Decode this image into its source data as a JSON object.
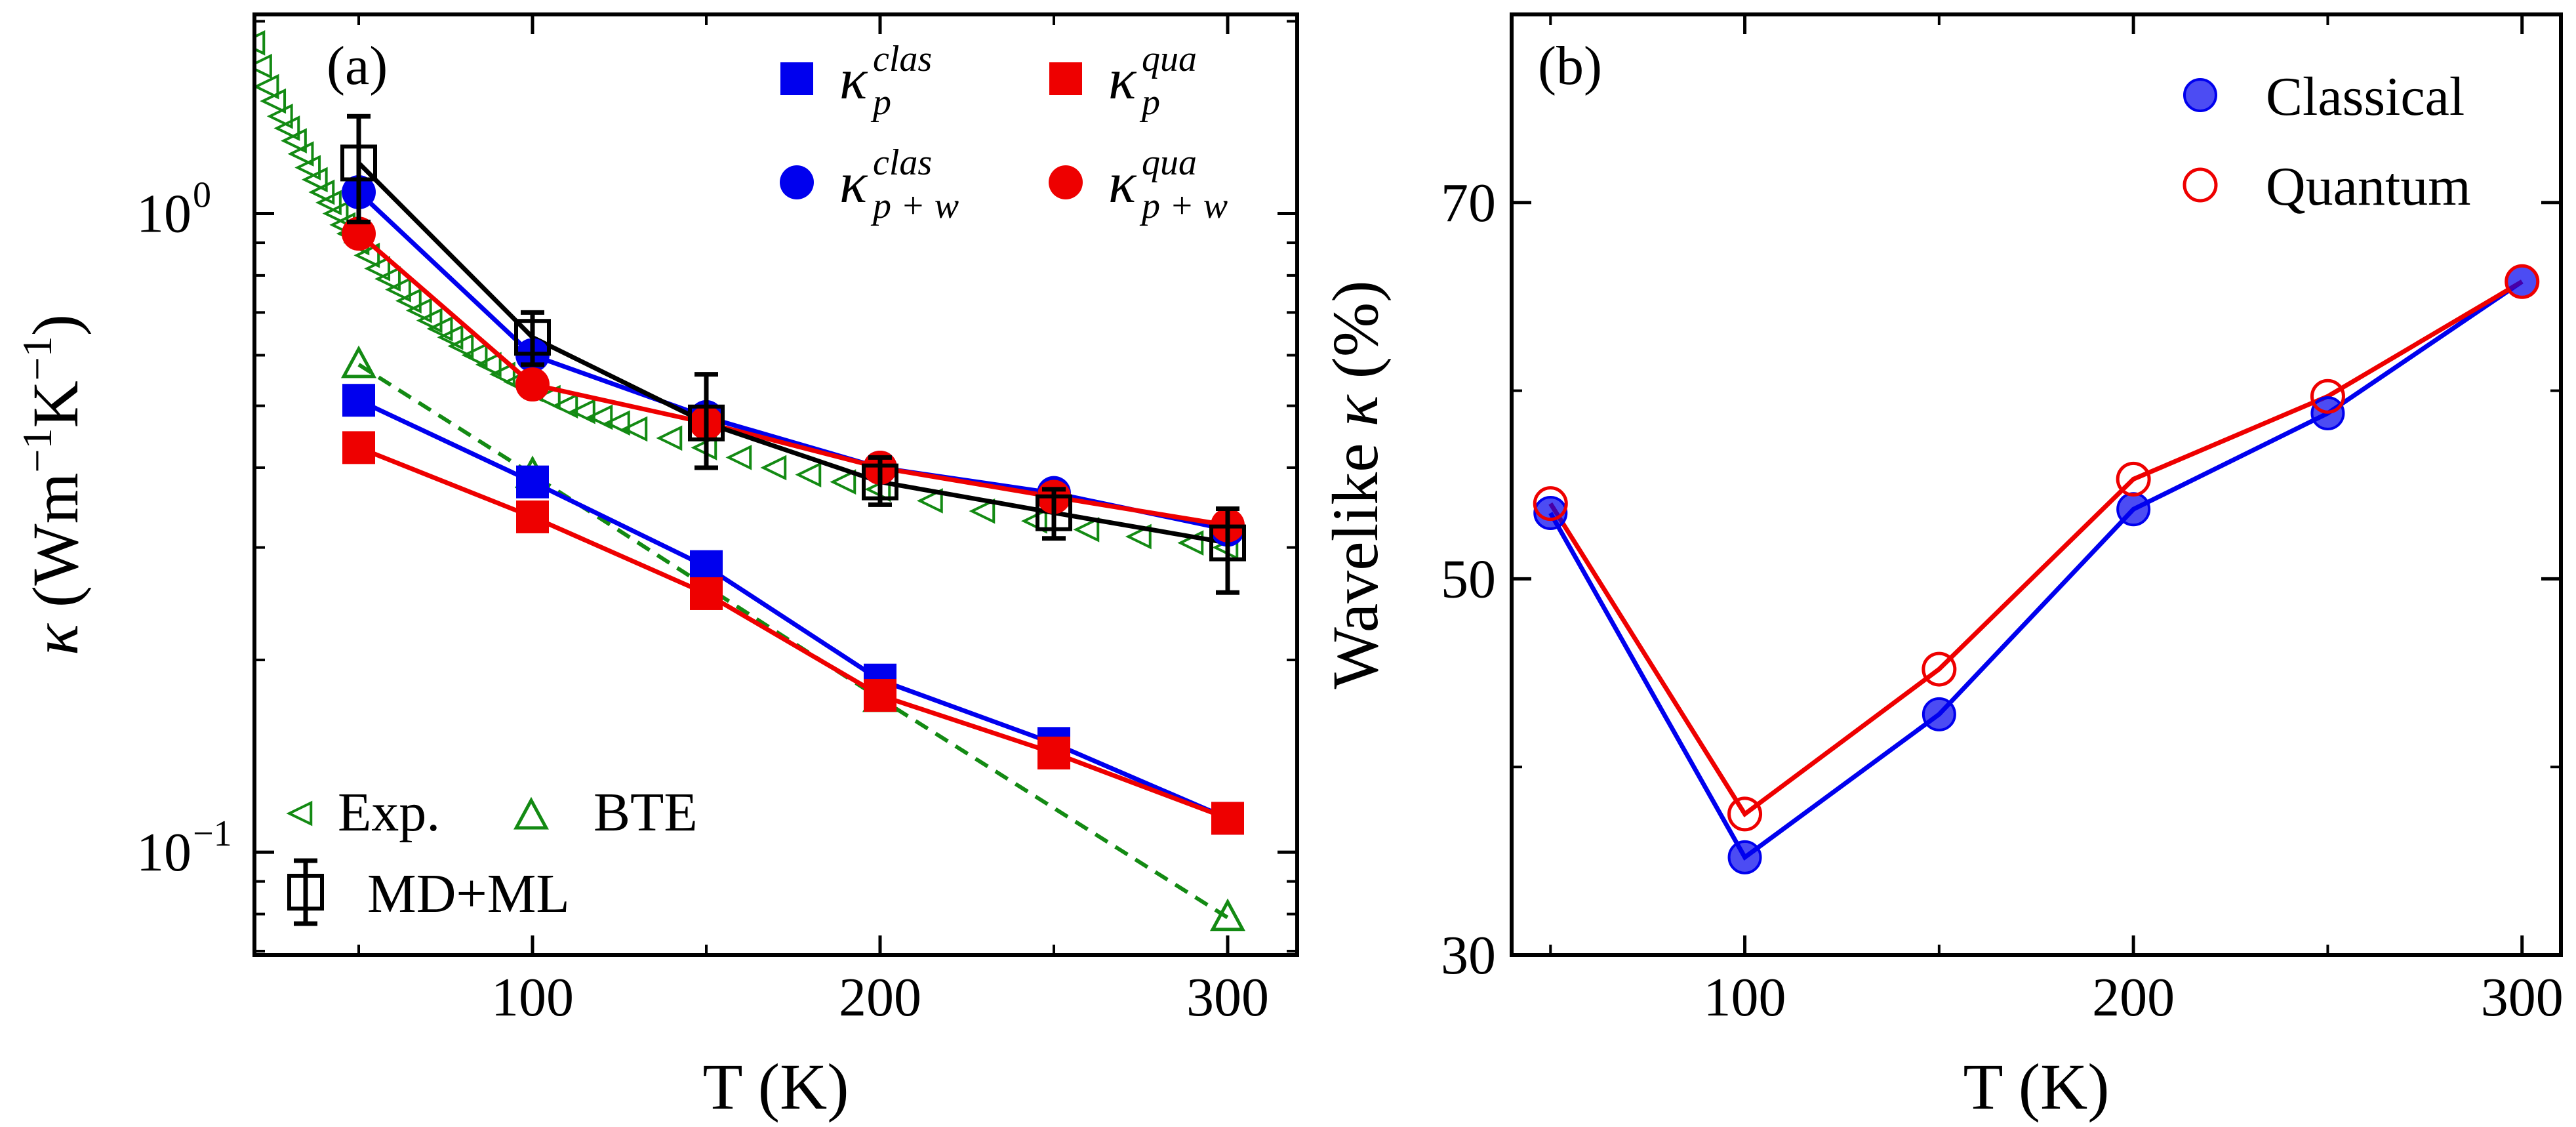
{
  "chart_data": [
    {
      "type": "line",
      "panel_label": "(a)",
      "xlabel": "T (K)",
      "ylabel_parts": [
        "κ",
        " (Wm",
        "−1",
        "K",
        "−1",
        ")"
      ],
      "y_scale": "log",
      "xlim": [
        20,
        320
      ],
      "ylim": [
        0.069,
        2.05
      ],
      "x_ticks": [
        100,
        200,
        300
      ],
      "x_tick_labels": [
        "100",
        "200",
        "300"
      ],
      "y_tick_labels": [
        {
          "value": 1.0,
          "base": "10",
          "exp": "0"
        },
        {
          "value": 0.1,
          "base": "10",
          "exp": "−1"
        }
      ],
      "colors": {
        "blue": "#0000ee",
        "red": "#ee0000",
        "green": "#138a13",
        "black": "#000000"
      },
      "series": [
        {
          "key": "kp_clas",
          "marker": "square",
          "color": "blue",
          "line": "solid",
          "x": [
            50,
            100,
            150,
            200,
            250,
            300
          ],
          "y": [
            0.51,
            0.38,
            0.28,
            0.186,
            0.148,
            0.113
          ]
        },
        {
          "key": "kp_qua",
          "marker": "square",
          "color": "red",
          "line": "solid",
          "x": [
            50,
            100,
            150,
            200,
            250,
            300
          ],
          "y": [
            0.43,
            0.335,
            0.254,
            0.176,
            0.143,
            0.113
          ]
        },
        {
          "key": "kpw_clas",
          "marker": "circle",
          "color": "blue",
          "line": "solid",
          "x": [
            50,
            100,
            150,
            200,
            250,
            300
          ],
          "y": [
            1.08,
            0.6,
            0.48,
            0.4,
            0.365,
            0.32
          ]
        },
        {
          "key": "kpw_qua",
          "marker": "circle",
          "color": "red",
          "line": "solid",
          "x": [
            50,
            100,
            150,
            200,
            250,
            300
          ],
          "y": [
            0.93,
            0.54,
            0.47,
            0.4,
            0.36,
            0.325
          ]
        },
        {
          "key": "md_ml",
          "marker": "open-square",
          "color": "black",
          "line": "solid",
          "x": [
            50,
            100,
            150,
            200,
            250,
            300
          ],
          "y": [
            1.2,
            0.64,
            0.47,
            0.38,
            0.34,
            0.305
          ],
          "err_low": [
            0.97,
            0.58,
            0.4,
            0.35,
            0.31,
            0.255
          ],
          "err_high": [
            1.42,
            0.7,
            0.56,
            0.415,
            0.37,
            0.345
          ]
        },
        {
          "key": "bte",
          "marker": "open-triangle-up",
          "color": "green",
          "line": "dashed",
          "x": [
            50,
            100,
            200,
            300
          ],
          "y": [
            0.58,
            0.39,
            0.174,
            0.079
          ]
        },
        {
          "key": "exp",
          "marker": "open-triangle-left",
          "color": "green",
          "line": "none",
          "x": [
            20,
            22,
            24,
            26,
            28,
            30,
            32,
            34,
            36,
            38,
            40,
            42,
            44,
            46,
            48,
            50,
            53,
            56,
            59,
            62,
            65,
            68,
            71,
            74,
            77,
            80,
            84,
            88,
            92,
            96,
            100,
            105,
            110,
            115,
            120,
            125,
            130,
            140,
            150,
            160,
            170,
            180,
            190,
            200,
            215,
            230,
            245,
            260,
            275,
            290,
            300
          ],
          "y": [
            1.85,
            1.7,
            1.58,
            1.5,
            1.42,
            1.36,
            1.3,
            1.24,
            1.18,
            1.13,
            1.08,
            1.04,
            1.0,
            0.96,
            0.93,
            0.9,
            0.86,
            0.82,
            0.79,
            0.76,
            0.73,
            0.705,
            0.68,
            0.66,
            0.64,
            0.62,
            0.6,
            0.58,
            0.56,
            0.545,
            0.53,
            0.515,
            0.5,
            0.49,
            0.48,
            0.47,
            0.46,
            0.445,
            0.43,
            0.415,
            0.4,
            0.39,
            0.38,
            0.37,
            0.355,
            0.342,
            0.33,
            0.32,
            0.312,
            0.305,
            0.3
          ]
        }
      ],
      "legend_top": [
        {
          "series": "kp_clas",
          "main": "κ",
          "sup": "clas",
          "sub": "p"
        },
        {
          "series": "kp_qua",
          "main": "κ",
          "sup": "qua",
          "sub": "p"
        },
        {
          "series": "kpw_clas",
          "main": "κ",
          "sup": "clas",
          "sub": "p + w"
        },
        {
          "series": "kpw_qua",
          "main": "κ",
          "sup": "qua",
          "sub": "p + w"
        }
      ],
      "legend_bottom": [
        {
          "series": "exp",
          "label": "Exp."
        },
        {
          "series": "bte",
          "label": "BTE"
        },
        {
          "series": "md_ml",
          "label": "MD+ML"
        }
      ]
    },
    {
      "type": "line",
      "panel_label": "(b)",
      "xlabel": "T (K)",
      "ylabel": "Wavelike κ (%)",
      "ylabel_parts": [
        "Wavelike ",
        "κ",
        " (%)"
      ],
      "xlim": [
        40,
        310
      ],
      "ylim": [
        30,
        80
      ],
      "x_ticks": [
        100,
        200,
        300
      ],
      "x_tick_labels": [
        "100",
        "200",
        "300"
      ],
      "y_ticks": [
        30,
        50,
        70
      ],
      "y_tick_labels": [
        "30",
        "50",
        "70"
      ],
      "series": [
        {
          "name": "Classical",
          "marker": "filled-circle",
          "color": "#0000ee",
          "x": [
            50,
            100,
            150,
            200,
            250,
            300
          ],
          "y": [
            53.5,
            35.2,
            42.8,
            53.7,
            58.8,
            65.8
          ]
        },
        {
          "name": "Quantum",
          "marker": "open-circle",
          "color": "#ee0000",
          "x": [
            50,
            100,
            150,
            200,
            250,
            300
          ],
          "y": [
            54,
            37.5,
            45.2,
            55.3,
            59.7,
            65.8
          ]
        }
      ],
      "legend": [
        "Classical",
        "Quantum"
      ]
    }
  ]
}
